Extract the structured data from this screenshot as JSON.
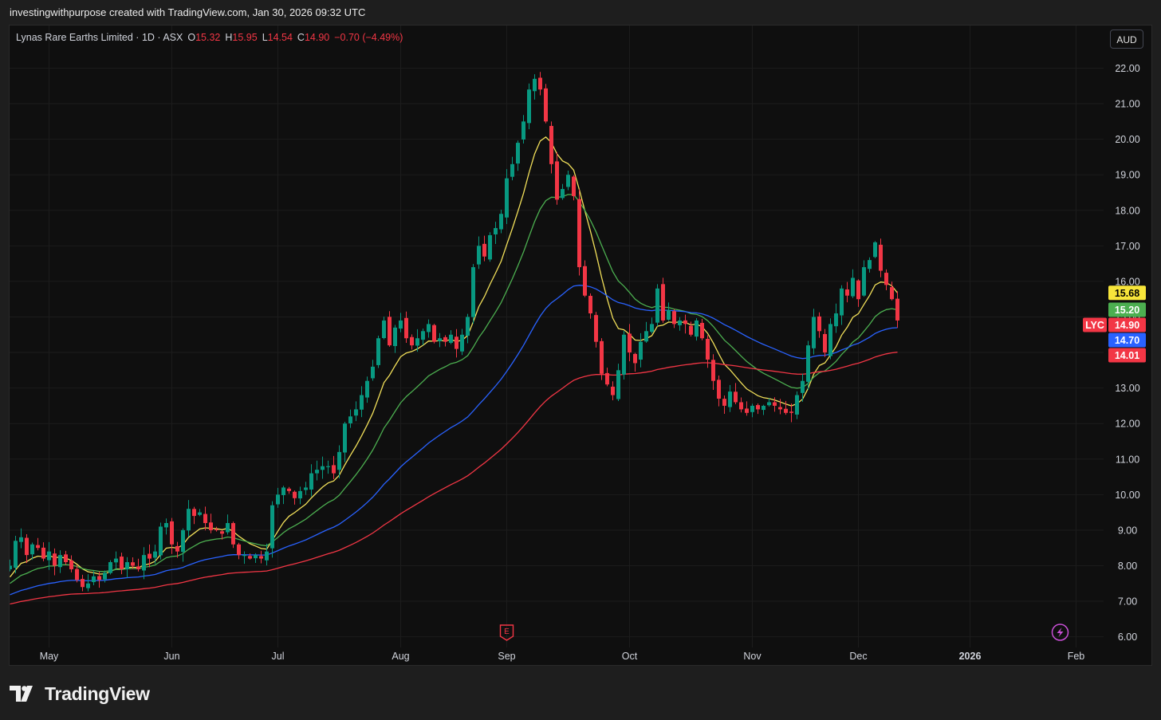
{
  "caption": "investingwithpurpose created with TradingView.com, Jan 30, 2026 09:32 UTC",
  "legend": {
    "name": "Lynas Rare Earths Limited",
    "sep1": " · ",
    "interval": "1D",
    "sep2": " · ",
    "exchange": "ASX",
    "o_label": "O",
    "o": "15.32",
    "h_label": "H",
    "h": "15.95",
    "l_label": "L",
    "l": "14.54",
    "c_label": "C",
    "c": "14.90",
    "change": "−0.70 (−4.49%)"
  },
  "currency": "AUD",
  "symbol": "LYC",
  "brand": "TradingView",
  "chart_data": {
    "type": "candlestick",
    "y_axis": {
      "min": 5.7,
      "max": 23.2,
      "ticks": [
        6,
        7,
        8,
        9,
        10,
        11,
        12,
        13,
        14,
        15,
        16,
        17,
        18,
        19,
        20,
        21,
        22
      ],
      "tick_labels": [
        "6.00",
        "7.00",
        "8.00",
        "9.00",
        "10.00",
        "11.00",
        "12.00",
        "13.00",
        "14.00",
        "15.00",
        "16.00",
        "17.00",
        "18.00",
        "19.00",
        "20.00",
        "21.00",
        "22.00"
      ]
    },
    "x_axis": {
      "labels": [
        "May",
        "Jun",
        "Jul",
        "Aug",
        "Sep",
        "Oct",
        "Nov",
        "Dec",
        "2026",
        "Feb"
      ],
      "label_index": [
        7,
        29,
        48,
        70,
        89,
        111,
        133,
        152,
        172,
        191
      ]
    },
    "colors": {
      "up": "#089981",
      "down": "#f23645",
      "ma1": "#f2e05a",
      "ma2": "#4caf50",
      "ma3": "#2962ff",
      "ma4": "#f23645",
      "grid": "#1c1c1c"
    },
    "closes": [
      8.0,
      8.7,
      8.8,
      8.3,
      8.6,
      8.5,
      8.2,
      8.4,
      8.0,
      8.3,
      8.1,
      7.9,
      7.6,
      7.4,
      7.5,
      7.7,
      7.6,
      7.8,
      8.1,
      8.2,
      7.9,
      8.1,
      8.0,
      7.9,
      8.3,
      8.2,
      8.4,
      9.1,
      9.2,
      8.6,
      8.4,
      9.0,
      9.6,
      9.4,
      9.5,
      9.2,
      9.0,
      9.0,
      8.9,
      9.2,
      8.6,
      8.3,
      8.3,
      8.2,
      8.3,
      8.2,
      8.4,
      9.7,
      10.0,
      10.2,
      10.1,
      9.9,
      10.1,
      10.2,
      10.6,
      10.7,
      10.8,
      10.8,
      10.6,
      11.2,
      12.0,
      12.2,
      12.4,
      12.8,
      13.2,
      13.6,
      14.4,
      14.9,
      14.2,
      14.7,
      14.9,
      14.4,
      14.2,
      14.4,
      14.6,
      14.8,
      14.3,
      14.4,
      14.3,
      14.5,
      14.1,
      14.5,
      15.0,
      16.4,
      17.0,
      16.7,
      17.3,
      17.5,
      17.9,
      18.9,
      19.3,
      19.9,
      20.5,
      21.4,
      21.7,
      21.4,
      20.5,
      19.3,
      18.3,
      18.6,
      19.0,
      18.4,
      16.4,
      15.6,
      15.1,
      14.3,
      13.4,
      13.1,
      12.8,
      13.5,
      14.5,
      14.0,
      13.7,
      14.3,
      14.6,
      14.8,
      15.8,
      14.9,
      15.2,
      14.8,
      14.9,
      14.8,
      14.5,
      14.9,
      14.4,
      13.8,
      13.2,
      12.7,
      12.5,
      12.9,
      12.6,
      12.4,
      12.3,
      12.5,
      12.4,
      12.5,
      12.6,
      12.5,
      12.4,
      12.3,
      12.3,
      12.8,
      13.2,
      14.2,
      15.0,
      14.6,
      14.0,
      14.8,
      15.1,
      15.8,
      15.6,
      16.1,
      15.5,
      16.4,
      16.6,
      17.1,
      16.3,
      15.9,
      15.5,
      14.9
    ]
  }
}
